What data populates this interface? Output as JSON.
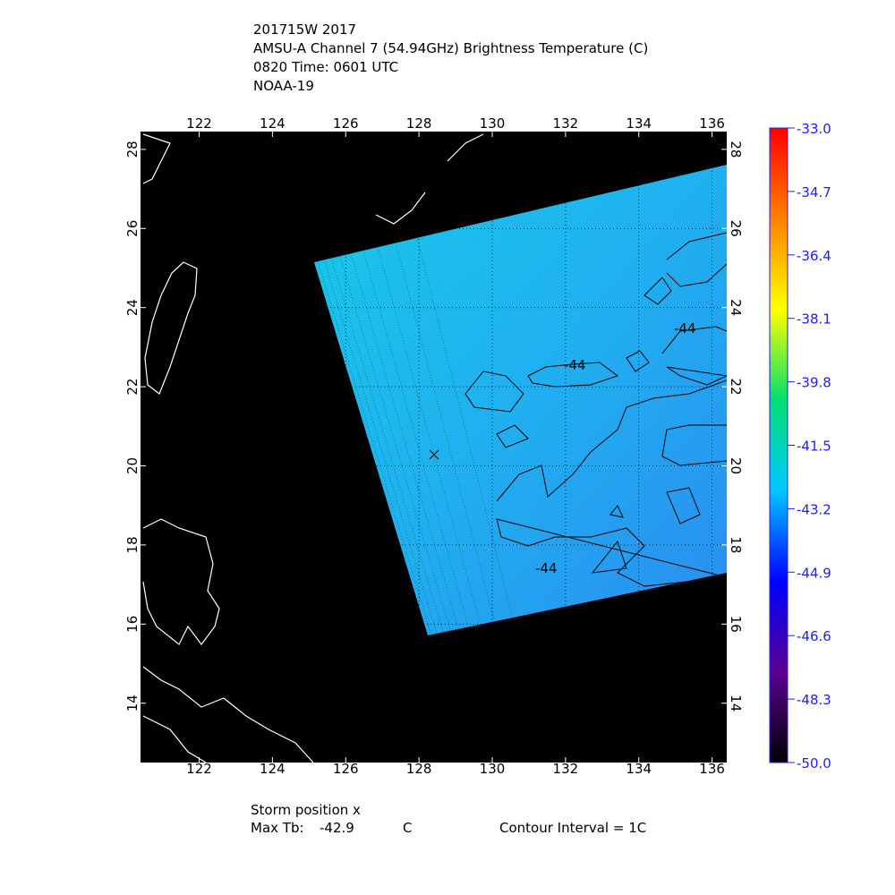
{
  "chart_data": {
    "type": "map",
    "title_lines": [
      "201715W 2017",
      "AMSU-A Channel 7 (54.94GHz) Brightness Temperature (C)",
      "0820 Time: 0601 UTC",
      "NOAA-19"
    ],
    "xlim": [
      120.4,
      136.4
    ],
    "xticks": [
      122,
      124,
      126,
      128,
      130,
      132,
      134,
      136
    ],
    "ylim": [
      12.5,
      28.45
    ],
    "yticks": [
      14,
      16,
      18,
      20,
      22,
      24,
      26,
      28
    ],
    "grid": true,
    "colorbar": {
      "lim": [
        -50.0,
        -33.0
      ],
      "colors": [
        "#000000",
        "#5a0090",
        "#0000ff",
        "#00c8ff",
        "#00e070",
        "#ffff00",
        "#ff8000",
        "#ff0000"
      ],
      "ticks": [
        {
          "value": -33.0,
          "label": "-33.0"
        },
        {
          "value": -34.7,
          "label": "-34.7"
        },
        {
          "value": -36.4,
          "label": "-36.4"
        },
        {
          "value": -38.1,
          "label": "-38.1"
        },
        {
          "value": -39.8,
          "label": "-39.8"
        },
        {
          "value": -41.5,
          "label": "-41.5"
        },
        {
          "value": -43.2,
          "label": "-43.2"
        },
        {
          "value": -44.9,
          "label": "-44.9"
        },
        {
          "value": -46.6,
          "label": "-46.6"
        },
        {
          "value": -48.3,
          "label": "-48.3"
        },
        {
          "value": -50.0,
          "label": "-50.0"
        }
      ]
    },
    "contour_labels": [
      "-44",
      "-44",
      "-44"
    ],
    "footer": {
      "storm_position": "Storm position x",
      "max_tb_label": "Max Tb:",
      "max_tb_value": -42.9,
      "max_tb_unit": "C",
      "contour_interval": "Contour Interval = 1C"
    }
  }
}
